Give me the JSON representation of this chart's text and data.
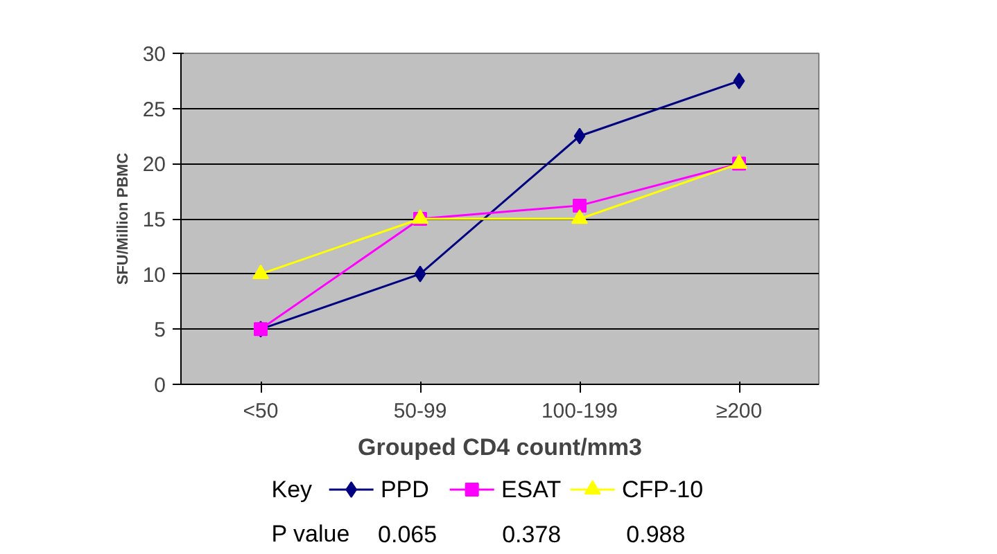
{
  "chart_data": {
    "type": "line",
    "xlabel": "Grouped CD4 count/mm3",
    "ylabel": "SFU/Million PBMC",
    "categories": [
      "<50",
      "50-99",
      "100-199",
      "≥200"
    ],
    "series": [
      {
        "name": "PPD",
        "color": "#000080",
        "marker": "diamond",
        "values": [
          5,
          10,
          22.5,
          27.5
        ]
      },
      {
        "name": "ESAT",
        "color": "#ff00ff",
        "marker": "square",
        "values": [
          5,
          15,
          16.2,
          20
        ]
      },
      {
        "name": "CFP-10",
        "color": "#ffff00",
        "marker": "triangle",
        "values": [
          10,
          15,
          15,
          20
        ]
      }
    ],
    "ylim": [
      0,
      30
    ],
    "yticks": [
      0,
      5,
      10,
      15,
      20,
      25,
      30
    ],
    "grid": "y",
    "legend": "bottom",
    "line_style": "solid",
    "annotations": [
      "Key",
      "P value",
      "0.065",
      "0.378",
      "0.988"
    ]
  }
}
